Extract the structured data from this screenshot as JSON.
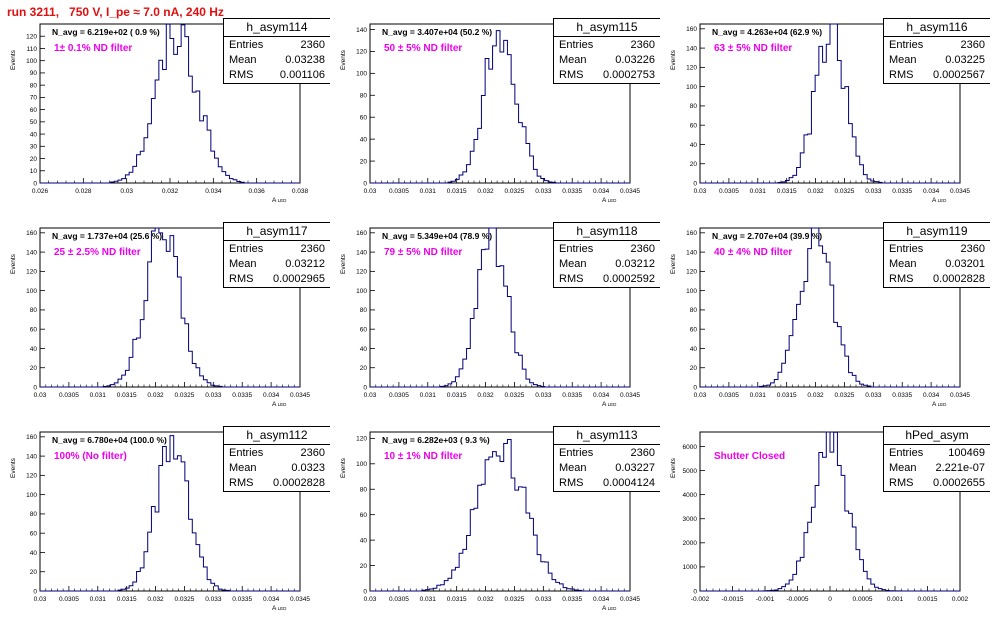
{
  "header": {
    "title": "run 3211,   750 V, I_pe ≈ 7.0 nA, 240 Hz"
  },
  "chart_data": [
    {
      "type": "histogram",
      "name": "h_asym114",
      "navg": "N_avg = 6.219e+02 ( 0.9 %)",
      "filter": "1± 0.1% ND filter",
      "stats": {
        "entries": "2360",
        "mean": "0.03238",
        "rms": "0.001106"
      },
      "xlim": [
        0.025,
        0.039
      ],
      "ylim": [
        0,
        130
      ],
      "mean": 0.03238,
      "rms": 0.001106,
      "peak": 125,
      "xticks": [
        "0.026",
        "0.028",
        "0.03",
        "0.032",
        "0.034",
        "0.036",
        "0.038"
      ],
      "yticks": [
        "0",
        "10",
        "20",
        "30",
        "40",
        "50",
        "60",
        "70",
        "80",
        "90",
        "100",
        "110",
        "120"
      ],
      "xlabel": "A_LED",
      "ylabel": "Events"
    },
    {
      "type": "histogram",
      "name": "h_asym115",
      "navg": "N_avg = 3.407e+04 (50.2 %)",
      "filter": "50 ± 5% ND filter",
      "stats": {
        "entries": "2360",
        "mean": "0.03226",
        "rms": "0.0002753"
      },
      "xlim": [
        0.03,
        0.0345
      ],
      "ylim": [
        0,
        145
      ],
      "mean": 0.03226,
      "rms": 0.0002753,
      "peak": 140,
      "xticks": [
        "0.03",
        "0.0305",
        "0.031",
        "0.0315",
        "0.032",
        "0.0325",
        "0.033",
        "0.0335",
        "0.034",
        "0.0345"
      ],
      "yticks": [
        "0",
        "20",
        "40",
        "60",
        "80",
        "100",
        "120",
        "140"
      ],
      "xlabel": "A_LED",
      "ylabel": "Events"
    },
    {
      "type": "histogram",
      "name": "h_asym116",
      "navg": "N_avg = 4.263e+04 (62.9 %)",
      "filter": "63 ± 5% ND filter",
      "stats": {
        "entries": "2360",
        "mean": "0.03225",
        "rms": "0.0002567"
      },
      "xlim": [
        0.03,
        0.0345
      ],
      "ylim": [
        0,
        165
      ],
      "mean": 0.03225,
      "rms": 0.0002567,
      "peak": 160,
      "xticks": [
        "0.03",
        "0.0305",
        "0.031",
        "0.0315",
        "0.032",
        "0.0325",
        "0.033",
        "0.0335",
        "0.034",
        "0.0345"
      ],
      "yticks": [
        "0",
        "20",
        "40",
        "60",
        "80",
        "100",
        "120",
        "140",
        "160"
      ],
      "xlabel": "A_LED",
      "ylabel": "Events"
    },
    {
      "type": "histogram",
      "name": "h_asym117",
      "navg": "N_avg = 1.737e+04 (25.6 %)",
      "filter": "25 ± 2.5% ND filter",
      "stats": {
        "entries": "2360",
        "mean": "0.03212",
        "rms": "0.0002965"
      },
      "xlim": [
        0.03,
        0.0345
      ],
      "ylim": [
        0,
        165
      ],
      "mean": 0.03212,
      "rms": 0.0002965,
      "peak": 160,
      "xticks": [
        "0.03",
        "0.0305",
        "0.031",
        "0.0315",
        "0.032",
        "0.0325",
        "0.033",
        "0.0335",
        "0.034",
        "0.0345"
      ],
      "yticks": [
        "0",
        "20",
        "40",
        "60",
        "80",
        "100",
        "120",
        "140",
        "160"
      ],
      "xlabel": "A_LED",
      "ylabel": "Events"
    },
    {
      "type": "histogram",
      "name": "h_asym118",
      "navg": "N_avg = 5.349e+04 (78.9 %)",
      "filter": "79 ± 5% ND filter",
      "stats": {
        "entries": "2360",
        "mean": "0.03212",
        "rms": "0.0002592"
      },
      "xlim": [
        0.03,
        0.0345
      ],
      "ylim": [
        0,
        165
      ],
      "mean": 0.03212,
      "rms": 0.0002592,
      "peak": 160,
      "xticks": [
        "0.03",
        "0.0305",
        "0.031",
        "0.0315",
        "0.032",
        "0.0325",
        "0.033",
        "0.0335",
        "0.034",
        "0.0345"
      ],
      "yticks": [
        "0",
        "20",
        "40",
        "60",
        "80",
        "100",
        "120",
        "140",
        "160"
      ],
      "xlabel": "A_LED",
      "ylabel": "Events"
    },
    {
      "type": "histogram",
      "name": "h_asym119",
      "navg": "N_avg = 2.707e+04 (39.9 %)",
      "filter": "40 ± 4% ND filter",
      "stats": {
        "entries": "2360",
        "mean": "0.03201",
        "rms": "0.0002828"
      },
      "xlim": [
        0.03,
        0.0345
      ],
      "ylim": [
        0,
        165
      ],
      "mean": 0.03201,
      "rms": 0.0002828,
      "peak": 160,
      "xticks": [
        "0.03",
        "0.0305",
        "0.031",
        "0.0315",
        "0.032",
        "0.0325",
        "0.033",
        "0.0335",
        "0.034",
        "0.0345"
      ],
      "yticks": [
        "0",
        "20",
        "40",
        "60",
        "80",
        "100",
        "120",
        "140",
        "160"
      ],
      "xlabel": "A_LED",
      "ylabel": "Events"
    },
    {
      "type": "histogram",
      "name": "h_asym112",
      "navg": "N_avg = 6.780e+04 (100.0 %)",
      "filter": "100% (No filter)",
      "stats": {
        "entries": "2360",
        "mean": "0.0323",
        "rms": "0.0002828"
      },
      "xlim": [
        0.03,
        0.0345
      ],
      "ylim": [
        0,
        165
      ],
      "mean": 0.0323,
      "rms": 0.0002828,
      "peak": 160,
      "xticks": [
        "0.03",
        "0.0305",
        "0.031",
        "0.0315",
        "0.032",
        "0.0325",
        "0.033",
        "0.0335",
        "0.034",
        "0.0345"
      ],
      "yticks": [
        "0",
        "20",
        "40",
        "60",
        "80",
        "100",
        "120",
        "140",
        "160"
      ],
      "xlabel": "A_LED",
      "ylabel": "Events"
    },
    {
      "type": "histogram",
      "name": "h_asym113",
      "navg": "N_avg = 6.282e+03 ( 9.3 %)",
      "filter": "10 ± 1% ND filter",
      "stats": {
        "entries": "2360",
        "mean": "0.03227",
        "rms": "0.0004124"
      },
      "xlim": [
        0.03,
        0.0345
      ],
      "ylim": [
        0,
        125
      ],
      "mean": 0.03227,
      "rms": 0.0004124,
      "peak": 118,
      "xticks": [
        "0.03",
        "0.0305",
        "0.031",
        "0.0315",
        "0.032",
        "0.0325",
        "0.033",
        "0.0335",
        "0.034",
        "0.0345"
      ],
      "yticks": [
        "0",
        "20",
        "40",
        "60",
        "80",
        "100",
        "120"
      ],
      "xlabel": "A_LED",
      "ylabel": "Events"
    },
    {
      "type": "histogram",
      "name": "hPed_asym",
      "navg": "",
      "filter": "Shutter Closed",
      "stats": {
        "entries": "100469",
        "mean": "2.221e-07",
        "rms": "0.0002655"
      },
      "xlim": [
        -0.002,
        0.002
      ],
      "ylim": [
        0,
        6600
      ],
      "mean": 0.0,
      "rms": 0.0002655,
      "peak": 6200,
      "xticks": [
        "-0.002",
        "-0.0015",
        "-0.001",
        "-0.0005",
        "0",
        "0.0005",
        "0.001",
        "0.0015",
        "0.002"
      ],
      "yticks": [
        "0",
        "1000",
        "2000",
        "3000",
        "4000",
        "5000",
        "6000"
      ],
      "xlabel": "",
      "ylabel": "Events"
    }
  ],
  "labels": {
    "entries": "Entries",
    "mean": "Mean",
    "rms": "RMS"
  }
}
